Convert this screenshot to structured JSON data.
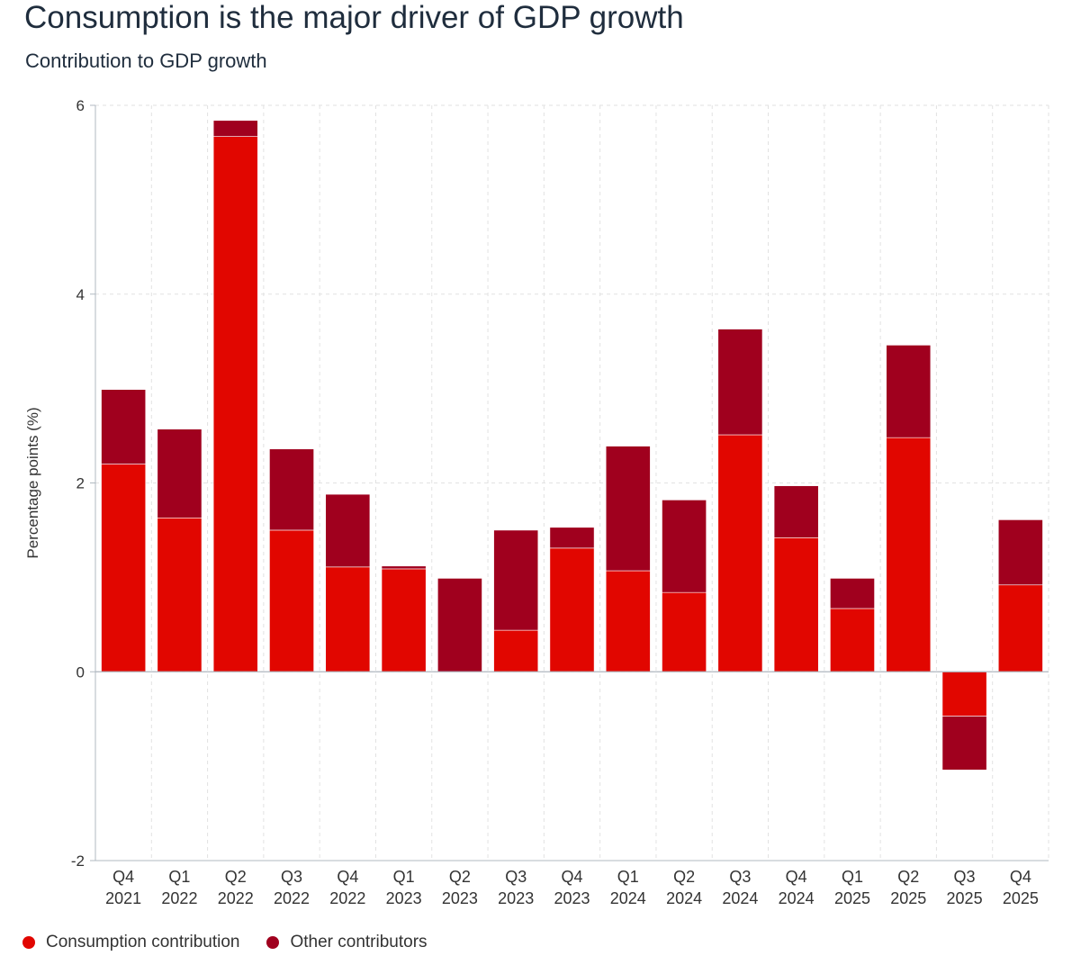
{
  "title": "Consumption is the major driver of GDP growth",
  "subtitle": "Contribution to GDP growth",
  "colors": {
    "consumption": "#e10600",
    "other": "#a0001e",
    "axis": "#b0b8c0",
    "grid": "#e2e2e2",
    "text": "#333333"
  },
  "chart_data": {
    "type": "bar",
    "stacked": true,
    "title": "Consumption is the major driver of GDP growth",
    "subtitle": "Contribution to GDP growth",
    "xlabel": "",
    "ylabel": "Percentage points (%)",
    "ylim": [
      -2,
      6
    ],
    "yticks": [
      -2,
      0,
      2,
      4,
      6
    ],
    "grid": true,
    "legend_position": "bottom-left",
    "categories": [
      [
        "Q4",
        "2021"
      ],
      [
        "Q1",
        "2022"
      ],
      [
        "Q2",
        "2022"
      ],
      [
        "Q3",
        "2022"
      ],
      [
        "Q4",
        "2022"
      ],
      [
        "Q1",
        "2023"
      ],
      [
        "Q2",
        "2023"
      ],
      [
        "Q3",
        "2023"
      ],
      [
        "Q4",
        "2023"
      ],
      [
        "Q1",
        "2024"
      ],
      [
        "Q2",
        "2024"
      ],
      [
        "Q3",
        "2024"
      ],
      [
        "Q4",
        "2024"
      ],
      [
        "Q1",
        "2025"
      ],
      [
        "Q2",
        "2025"
      ],
      [
        "Q3",
        "2025"
      ],
      [
        "Q4",
        "2025"
      ]
    ],
    "series": [
      {
        "name": "Consumption contribution",
        "values": [
          2.2,
          1.63,
          5.67,
          1.5,
          1.11,
          1.09,
          0.0,
          0.44,
          1.31,
          1.07,
          0.84,
          2.51,
          1.42,
          0.67,
          2.48,
          -0.47,
          0.92
        ]
      },
      {
        "name": "Other contributors",
        "values": [
          0.79,
          0.94,
          0.17,
          0.86,
          0.77,
          0.03,
          0.99,
          1.06,
          0.22,
          1.32,
          0.98,
          1.12,
          0.55,
          0.32,
          0.98,
          -0.57,
          0.69
        ]
      }
    ]
  },
  "legend": [
    {
      "label": "Consumption contribution"
    },
    {
      "label": "Other contributors"
    }
  ]
}
